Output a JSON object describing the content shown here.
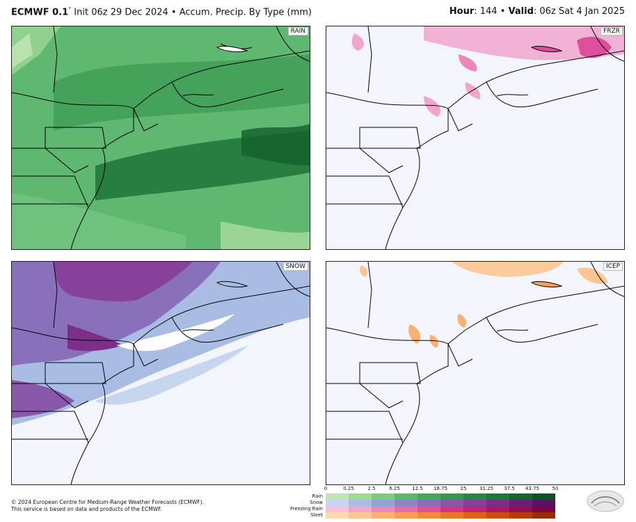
{
  "header": {
    "model": "ECMWF 0.1",
    "degree": "°",
    "init": "Init 06z 29 Dec 2024",
    "bullet": "•",
    "product": "Accum. Precip. By Type (mm)",
    "hour_label": "Hour",
    "hour_value": ": 144",
    "valid_label": "Valid",
    "valid_value": ": 06z Sat 4 Jan 2025"
  },
  "panels": [
    {
      "id": "rain",
      "label": "RAIN"
    },
    {
      "id": "frzr",
      "label": "FRZR"
    },
    {
      "id": "snow",
      "label": "SNOW"
    },
    {
      "id": "icep",
      "label": "ICEP"
    }
  ],
  "legend": {
    "ticks": [
      "0",
      "0.25",
      "2.5",
      "6.25",
      "12.5",
      "18.75",
      "25",
      "31.25",
      "37.5",
      "43.75",
      "50"
    ],
    "rows": [
      {
        "name": "Rain",
        "colors": [
          "#bfe6b0",
          "#9ed897",
          "#7dca80",
          "#5cb96b",
          "#45a95c",
          "#33994f",
          "#268843",
          "#1c7837",
          "#13672c",
          "#0a5521"
        ]
      },
      {
        "name": "Snow",
        "colors": [
          "#c7d6ee",
          "#a9bde4",
          "#8ea3d8",
          "#8c86c8",
          "#8a6fba",
          "#8a58ab",
          "#86429b",
          "#7b2f89",
          "#6c1f76",
          "#5a1262"
        ]
      },
      {
        "name": "Freezing Rain",
        "colors": [
          "#f6c2dc",
          "#f0a5cc",
          "#ea88bc",
          "#e46bab",
          "#de4f9b",
          "#d2338a",
          "#bd2379",
          "#a61769",
          "#8f0e58",
          "#780748"
        ]
      },
      {
        "name": "Sleet",
        "colors": [
          "#fdd9b0",
          "#fcc690",
          "#fbb270",
          "#f99e53",
          "#f58a3a",
          "#ee7524",
          "#e06014",
          "#cc4c0b",
          "#b43a06",
          "#9a2b03"
        ]
      }
    ]
  },
  "footer": {
    "line1": "© 2024 European Centre for Medium-Range Weather Forecasts (ECMWF).",
    "line2": "This service is based on data and products of the ECMWF."
  }
}
